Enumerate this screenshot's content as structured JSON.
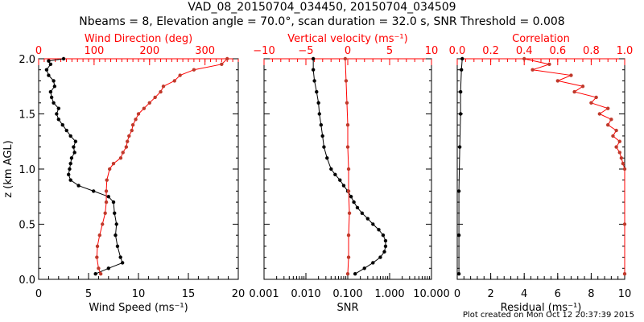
{
  "chart_data": [
    {
      "type": "line",
      "title": "VAD_08_20150704_034450, 20150704_034509",
      "subtitle": "Nbeams = 8, Elevation angle = 70.0°, scan duration = 32.0 s, SNR Threshold = 0.008",
      "ylabel": "z (km AGL)",
      "ylim": [
        0,
        2.0
      ],
      "yticks": [
        "0.0",
        "0.5",
        "1.0",
        "1.5",
        "2.0"
      ]
    },
    {
      "panel": "wind",
      "xlabel": "Wind Speed (ms⁻¹)",
      "xlim": [
        0,
        20
      ],
      "xticks": [
        "0",
        "5",
        "10",
        "15",
        "20"
      ],
      "top_label": "Wind Direction (deg)",
      "top_lim": [
        0,
        360
      ],
      "top_ticks": [
        "0",
        "100",
        "200",
        "300"
      ],
      "series": [
        {
          "name": "Wind Speed",
          "color": "#000000",
          "axis": "bottom",
          "z": [
            0.05,
            0.1,
            0.15,
            0.2,
            0.3,
            0.4,
            0.5,
            0.6,
            0.7,
            0.75,
            0.8,
            0.85,
            0.9,
            0.95,
            1.0,
            1.05,
            1.1,
            1.15,
            1.2,
            1.25,
            1.3,
            1.35,
            1.4,
            1.45,
            1.5,
            1.55,
            1.6,
            1.65,
            1.7,
            1.75,
            1.8,
            1.85,
            1.9,
            1.95,
            1.98,
            2.0
          ],
          "x": [
            5.7,
            7.0,
            8.4,
            8.2,
            7.9,
            7.7,
            7.8,
            7.6,
            7.5,
            7.0,
            5.5,
            4.0,
            3.2,
            3.0,
            3.1,
            3.2,
            3.3,
            3.6,
            3.5,
            3.7,
            3.2,
            2.8,
            2.4,
            2.0,
            1.8,
            2.0,
            1.5,
            1.3,
            1.2,
            1.6,
            1.5,
            1.0,
            0.8,
            1.2,
            1.0,
            2.5
          ]
        },
        {
          "name": "Wind Direction",
          "color": "#c0392b",
          "axis": "top",
          "z": [
            0.05,
            0.1,
            0.2,
            0.3,
            0.4,
            0.5,
            0.6,
            0.7,
            0.8,
            0.9,
            1.0,
            1.05,
            1.1,
            1.15,
            1.2,
            1.25,
            1.3,
            1.35,
            1.4,
            1.45,
            1.5,
            1.55,
            1.6,
            1.65,
            1.7,
            1.75,
            1.8,
            1.85,
            1.9,
            1.95,
            2.0
          ],
          "x": [
            112,
            108,
            105,
            106,
            110,
            115,
            120,
            122,
            122,
            123,
            128,
            135,
            148,
            152,
            158,
            160,
            163,
            168,
            170,
            175,
            180,
            190,
            200,
            210,
            220,
            225,
            245,
            255,
            280,
            330,
            340
          ]
        }
      ]
    },
    {
      "panel": "snr",
      "xlabel": "SNR",
      "xscale": "log",
      "xlim": [
        0.001,
        10
      ],
      "xticks": [
        "0.001",
        "0.010",
        "0.100",
        "1.000",
        "10.000"
      ],
      "top_label": "Vertical velocity (ms⁻¹)",
      "top_lim": [
        -10,
        10
      ],
      "top_ticks": [
        "−10",
        "−5",
        "0",
        "5",
        "10"
      ],
      "series": [
        {
          "name": "SNR",
          "color": "#000000",
          "axis": "bottom",
          "z": [
            0.05,
            0.1,
            0.15,
            0.2,
            0.25,
            0.3,
            0.35,
            0.4,
            0.45,
            0.5,
            0.55,
            0.6,
            0.65,
            0.7,
            0.75,
            0.8,
            0.85,
            0.9,
            0.95,
            1.0,
            1.1,
            1.2,
            1.3,
            1.4,
            1.5,
            1.6,
            1.7,
            1.8,
            1.9,
            2.0
          ],
          "x": [
            0.15,
            0.25,
            0.4,
            0.6,
            0.75,
            0.8,
            0.8,
            0.7,
            0.55,
            0.4,
            0.3,
            0.22,
            0.17,
            0.14,
            0.12,
            0.1,
            0.08,
            0.065,
            0.05,
            0.04,
            0.032,
            0.027,
            0.025,
            0.023,
            0.021,
            0.02,
            0.018,
            0.016,
            0.015,
            0.015
          ]
        },
        {
          "name": "Vertical velocity",
          "color": "#c0392b",
          "axis": "top",
          "z": [
            0.05,
            0.2,
            0.4,
            0.6,
            0.8,
            1.0,
            1.2,
            1.4,
            1.6,
            1.8,
            2.0
          ],
          "x": [
            0.0,
            0.1,
            0.1,
            0.2,
            0.1,
            0.1,
            0.0,
            0.0,
            -0.1,
            -0.2,
            -0.3
          ]
        }
      ]
    },
    {
      "panel": "residual",
      "xlabel": "Residual (ms⁻¹)",
      "xlim": [
        0,
        10
      ],
      "xticks": [
        "0",
        "2",
        "4",
        "6",
        "8",
        "10"
      ],
      "top_label": "Correlation",
      "top_lim": [
        0,
        1
      ],
      "top_ticks": [
        "0.0",
        "0.2",
        "0.4",
        "0.6",
        "0.8",
        "1.0"
      ],
      "series": [
        {
          "name": "Residual",
          "color": "#000000",
          "axis": "bottom",
          "z": [
            0.05,
            0.4,
            0.8,
            1.2,
            1.5,
            1.7,
            1.9,
            2.0
          ],
          "x": [
            0.1,
            0.1,
            0.1,
            0.15,
            0.2,
            0.2,
            0.25,
            0.3
          ]
        },
        {
          "name": "Correlation",
          "color": "#c0392b",
          "axis": "top",
          "z": [
            0.05,
            0.5,
            1.0,
            1.05,
            1.1,
            1.15,
            1.2,
            1.25,
            1.3,
            1.35,
            1.4,
            1.45,
            1.5,
            1.55,
            1.6,
            1.65,
            1.7,
            1.75,
            1.8,
            1.85,
            1.9,
            1.95,
            2.0
          ],
          "x": [
            1.0,
            1.0,
            1.0,
            0.99,
            0.98,
            0.97,
            0.95,
            0.97,
            0.93,
            0.95,
            0.9,
            0.92,
            0.85,
            0.9,
            0.8,
            0.83,
            0.7,
            0.75,
            0.6,
            0.68,
            0.45,
            0.55,
            0.4
          ]
        }
      ]
    }
  ],
  "footer": "Plot created on Mon Oct 12 20:37:39 2015"
}
